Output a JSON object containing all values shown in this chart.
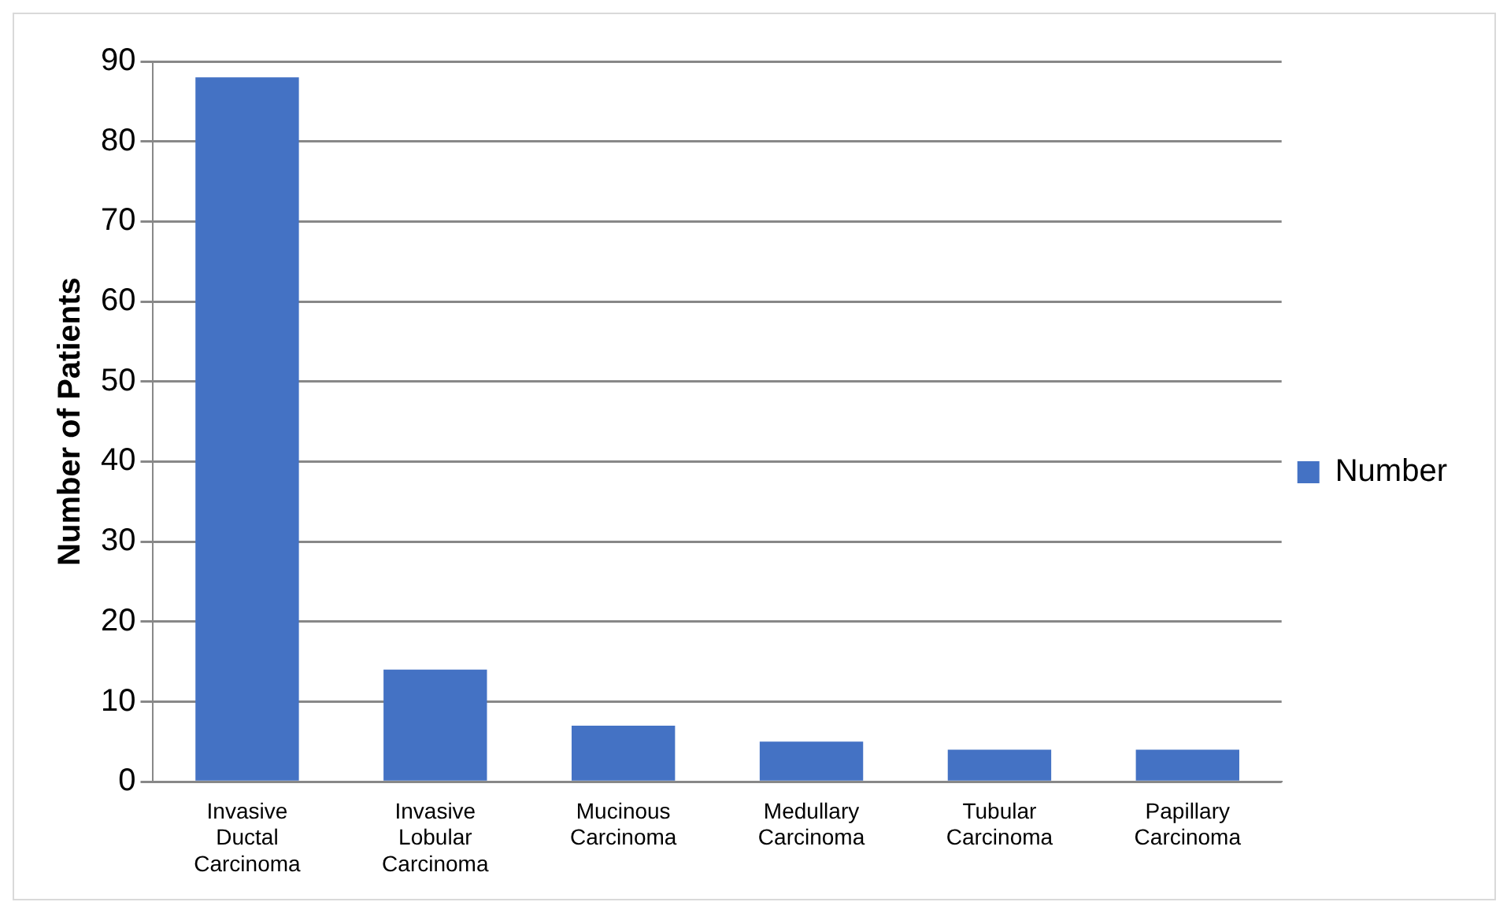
{
  "chart_data": {
    "type": "bar",
    "ylabel": "Number of Patients",
    "categories": [
      "Invasive Ductal Carcinoma",
      "Invasive Lobular Carcinoma",
      "Mucinous Carcinoma",
      "Medullary Carcinoma",
      "Tubular Carcinoma",
      "Papillary Carcinoma"
    ],
    "series": [
      {
        "name": "Number",
        "color": "#4472c4",
        "values": [
          88,
          14,
          7,
          5,
          4,
          4
        ]
      }
    ],
    "ylim": [
      0,
      90
    ],
    "yticks": [
      0,
      10,
      20,
      30,
      40,
      50,
      60,
      70,
      80,
      90
    ],
    "grid": "y",
    "legend": "right"
  }
}
